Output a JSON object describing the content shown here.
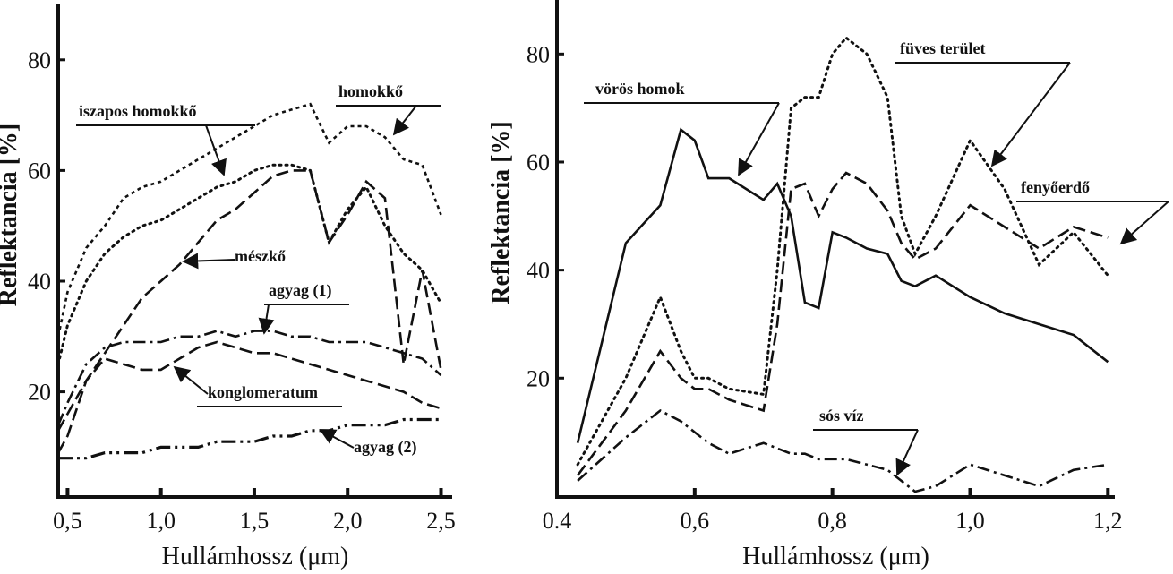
{
  "chart_data": [
    {
      "type": "line",
      "xlabel": "Hullámhossz (μm)",
      "ylabel": "Reflektancia [%]",
      "x": [
        0.45,
        0.5,
        0.6,
        0.7,
        0.8,
        0.9,
        1.0,
        1.1,
        1.2,
        1.3,
        1.4,
        1.5,
        1.6,
        1.7,
        1.8,
        1.9,
        2.0,
        2.1,
        2.2,
        2.3,
        2.4,
        2.5
      ],
      "xlim": [
        0.45,
        2.56
      ],
      "ylim": [
        1,
        90
      ],
      "xticks": [
        {
          "value": 0.5,
          "label": "0,5"
        },
        {
          "value": 1.0,
          "label": "1,0"
        },
        {
          "value": 1.5,
          "label": "1,5"
        },
        {
          "value": 2.0,
          "label": "2,0"
        },
        {
          "value": 2.5,
          "label": "2,5"
        }
      ],
      "yticks": [
        20,
        40,
        60,
        80
      ],
      "grid": false,
      "series": [
        {
          "name": "homokkő",
          "color": "#111111",
          "style": "dashed-short",
          "values": [
            30,
            38,
            46,
            50,
            55,
            57,
            58,
            60,
            62,
            64,
            66,
            68,
            70,
            71,
            72,
            65,
            68,
            68,
            66,
            62,
            61,
            52
          ]
        },
        {
          "name": "iszapos homokkő",
          "color": "#111111",
          "style": "dotted",
          "values": [
            25,
            32,
            40,
            45,
            48,
            50,
            51,
            53,
            55,
            57,
            58,
            60,
            61,
            61,
            60,
            47,
            53,
            57,
            50,
            45,
            42,
            36
          ]
        },
        {
          "name": "mészkő",
          "color": "#111111",
          "style": "dashed",
          "values": [
            13,
            16,
            22,
            27,
            32,
            37,
            40,
            43,
            47,
            51,
            53,
            56,
            59,
            60,
            60,
            47,
            52,
            58,
            55,
            25,
            42,
            24
          ]
        },
        {
          "name": "agyag (1)",
          "color": "#111111",
          "style": "dashdot",
          "values": [
            14,
            18,
            25,
            28,
            29,
            29,
            29,
            30,
            30,
            31,
            30,
            31,
            31,
            30,
            30,
            29,
            29,
            29,
            28,
            27,
            26,
            23
          ]
        },
        {
          "name": "konglomeratum",
          "color": "#111111",
          "style": "dashed",
          "values": [
            9,
            12,
            22,
            26,
            25,
            24,
            24,
            26,
            28,
            29,
            28,
            27,
            27,
            26,
            25,
            24,
            23,
            22,
            21,
            20,
            18,
            17
          ]
        },
        {
          "name": "agyag (2)",
          "color": "#111111",
          "style": "dashdotdot",
          "values": [
            8,
            8,
            8,
            9,
            9,
            9,
            10,
            10,
            10,
            11,
            11,
            11,
            12,
            12,
            13,
            13,
            14,
            14,
            14,
            15,
            15,
            15
          ]
        }
      ]
    },
    {
      "type": "line",
      "xlabel": "Hullámhossz (μm)",
      "ylabel": "Reflektancia [%]",
      "x": [
        0.43,
        0.5,
        0.55,
        0.58,
        0.6,
        0.62,
        0.65,
        0.7,
        0.72,
        0.74,
        0.76,
        0.78,
        0.8,
        0.82,
        0.85,
        0.88,
        0.9,
        0.92,
        0.95,
        1.0,
        1.05,
        1.1,
        1.15,
        1.2
      ],
      "xlim": [
        0.4,
        1.21
      ],
      "ylim": [
        -2,
        90
      ],
      "xticks": [
        {
          "value": 0.4,
          "label": "0.4"
        },
        {
          "value": 0.6,
          "label": "0,6"
        },
        {
          "value": 0.8,
          "label": "0,8"
        },
        {
          "value": 1.0,
          "label": "1,0"
        },
        {
          "value": 1.2,
          "label": "1,2"
        }
      ],
      "yticks": [
        20,
        40,
        60,
        80
      ],
      "grid": false,
      "series": [
        {
          "name": "vörös homok",
          "color": "#111111",
          "style": "solid",
          "values": [
            8,
            45,
            52,
            66,
            64,
            57,
            57,
            53,
            56,
            50,
            34,
            33,
            47,
            46,
            44,
            43,
            38,
            37,
            39,
            35,
            32,
            30,
            28,
            23
          ]
        },
        {
          "name": "füves terület",
          "color": "#111111",
          "style": "dotted",
          "values": [
            4,
            20,
            35,
            25,
            20,
            20,
            18,
            17,
            40,
            70,
            72,
            72,
            80,
            83,
            80,
            72,
            50,
            43,
            50,
            64,
            55,
            41,
            47,
            39
          ]
        },
        {
          "name": "fenyőerdő",
          "color": "#111111",
          "style": "dashed",
          "values": [
            2,
            14,
            25,
            20,
            18,
            18,
            16,
            14,
            30,
            55,
            56,
            50,
            55,
            58,
            56,
            51,
            45,
            42,
            44,
            52,
            48,
            44,
            48,
            46
          ]
        },
        {
          "name": "sós víz",
          "color": "#111111",
          "style": "dashdot",
          "values": [
            1,
            9,
            14,
            12,
            10,
            8,
            6,
            8,
            7,
            6,
            6,
            5,
            5,
            5,
            4,
            3,
            1,
            -1,
            0,
            4,
            2,
            0,
            3,
            4
          ]
        }
      ]
    }
  ]
}
